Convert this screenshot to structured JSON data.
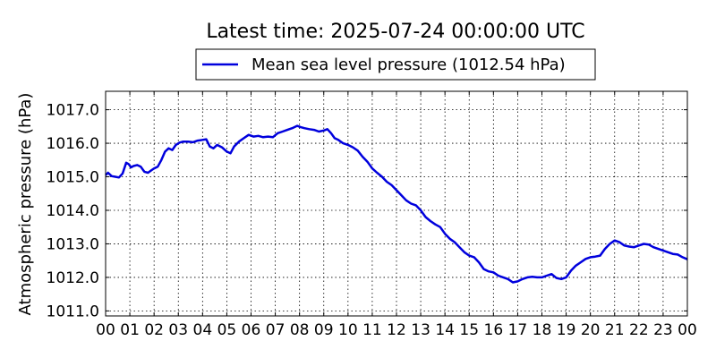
{
  "chart_data": {
    "type": "line",
    "title": "Latest time: 2025-07-24 00:00:00 UTC",
    "xlabel": "",
    "ylabel": "Atmospheric pressure (hPa)",
    "xlim": [
      0,
      24
    ],
    "ylim": [
      1010.85,
      1017.55
    ],
    "grid": true,
    "legend_position": "top-center",
    "series_color": "#0000dd",
    "x_ticks": [
      0,
      1,
      2,
      3,
      4,
      5,
      6,
      7,
      8,
      9,
      10,
      11,
      12,
      13,
      14,
      15,
      16,
      17,
      18,
      19,
      20,
      21,
      22,
      23,
      24
    ],
    "x_tick_labels": [
      "00",
      "01",
      "02",
      "03",
      "04",
      "05",
      "06",
      "07",
      "08",
      "09",
      "10",
      "11",
      "12",
      "13",
      "14",
      "15",
      "16",
      "17",
      "18",
      "19",
      "20",
      "21",
      "22",
      "23",
      "00"
    ],
    "y_ticks": [
      1011.0,
      1012.0,
      1013.0,
      1014.0,
      1015.0,
      1016.0,
      1017.0
    ],
    "y_tick_labels": [
      "1011.0",
      "1012.0",
      "1013.0",
      "1014.0",
      "1015.0",
      "1016.0",
      "1017.0"
    ],
    "series": [
      {
        "name": "Mean sea level pressure (1012.54 hPa)",
        "x": [
          0,
          0.1,
          0.25,
          0.4,
          0.55,
          0.7,
          0.85,
          0.95,
          1.05,
          1.15,
          1.3,
          1.45,
          1.6,
          1.75,
          1.9,
          2.0,
          2.15,
          2.3,
          2.45,
          2.6,
          2.75,
          2.9,
          3.05,
          3.2,
          3.4,
          3.6,
          3.8,
          4.0,
          4.15,
          4.3,
          4.45,
          4.6,
          4.8,
          5.0,
          5.15,
          5.3,
          5.5,
          5.7,
          5.9,
          6.1,
          6.3,
          6.5,
          6.7,
          6.9,
          7.1,
          7.3,
          7.5,
          7.7,
          7.9,
          8.05,
          8.2,
          8.4,
          8.6,
          8.8,
          9.0,
          9.15,
          9.3,
          9.45,
          9.6,
          9.8,
          10.0,
          10.2,
          10.4,
          10.6,
          10.8,
          11.0,
          11.2,
          11.4,
          11.6,
          11.8,
          12.0,
          12.2,
          12.4,
          12.6,
          12.8,
          13.0,
          13.2,
          13.4,
          13.6,
          13.8,
          14.0,
          14.2,
          14.4,
          14.6,
          14.8,
          15.0,
          15.2,
          15.4,
          15.6,
          15.8,
          16.0,
          16.2,
          16.4,
          16.6,
          16.8,
          17.0,
          17.2,
          17.4,
          17.6,
          17.8,
          18.0,
          18.2,
          18.4,
          18.6,
          18.8,
          19.0,
          19.2,
          19.4,
          19.6,
          19.8,
          20.0,
          20.2,
          20.4,
          20.6,
          20.8,
          21.0,
          21.2,
          21.4,
          21.6,
          21.8,
          22.0,
          22.2,
          22.4,
          22.6,
          22.8,
          23.0,
          23.2,
          23.4,
          23.6,
          23.8,
          24.0
        ],
        "values": [
          1015.05,
          1015.12,
          1015.02,
          1015.0,
          1014.98,
          1015.1,
          1015.42,
          1015.38,
          1015.28,
          1015.32,
          1015.35,
          1015.3,
          1015.15,
          1015.12,
          1015.2,
          1015.25,
          1015.3,
          1015.5,
          1015.75,
          1015.85,
          1015.8,
          1015.95,
          1016.02,
          1016.05,
          1016.05,
          1016.03,
          1016.08,
          1016.1,
          1016.12,
          1015.9,
          1015.85,
          1015.95,
          1015.88,
          1015.75,
          1015.7,
          1015.9,
          1016.05,
          1016.15,
          1016.25,
          1016.2,
          1016.22,
          1016.18,
          1016.2,
          1016.18,
          1016.3,
          1016.35,
          1016.4,
          1016.45,
          1016.52,
          1016.48,
          1016.45,
          1016.42,
          1016.4,
          1016.35,
          1016.38,
          1016.42,
          1016.3,
          1016.15,
          1016.1,
          1016.0,
          1015.95,
          1015.88,
          1015.78,
          1015.6,
          1015.45,
          1015.25,
          1015.12,
          1015.0,
          1014.85,
          1014.75,
          1014.6,
          1014.45,
          1014.3,
          1014.2,
          1014.15,
          1014.0,
          1013.8,
          1013.68,
          1013.58,
          1013.5,
          1013.3,
          1013.15,
          1013.05,
          1012.9,
          1012.75,
          1012.65,
          1012.6,
          1012.45,
          1012.25,
          1012.18,
          1012.15,
          1012.05,
          1012.0,
          1011.95,
          1011.85,
          1011.88,
          1011.95,
          1012.0,
          1012.02,
          1012.0,
          1012.0,
          1012.05,
          1012.1,
          1011.98,
          1011.95,
          1012.0,
          1012.2,
          1012.35,
          1012.45,
          1012.55,
          1012.6,
          1012.62,
          1012.65,
          1012.85,
          1013.0,
          1013.1,
          1013.05,
          1012.95,
          1012.92,
          1012.9,
          1012.95,
          1013.0,
          1012.98,
          1012.9,
          1012.85,
          1012.8,
          1012.75,
          1012.7,
          1012.68,
          1012.6,
          1012.54
        ]
      }
    ]
  }
}
